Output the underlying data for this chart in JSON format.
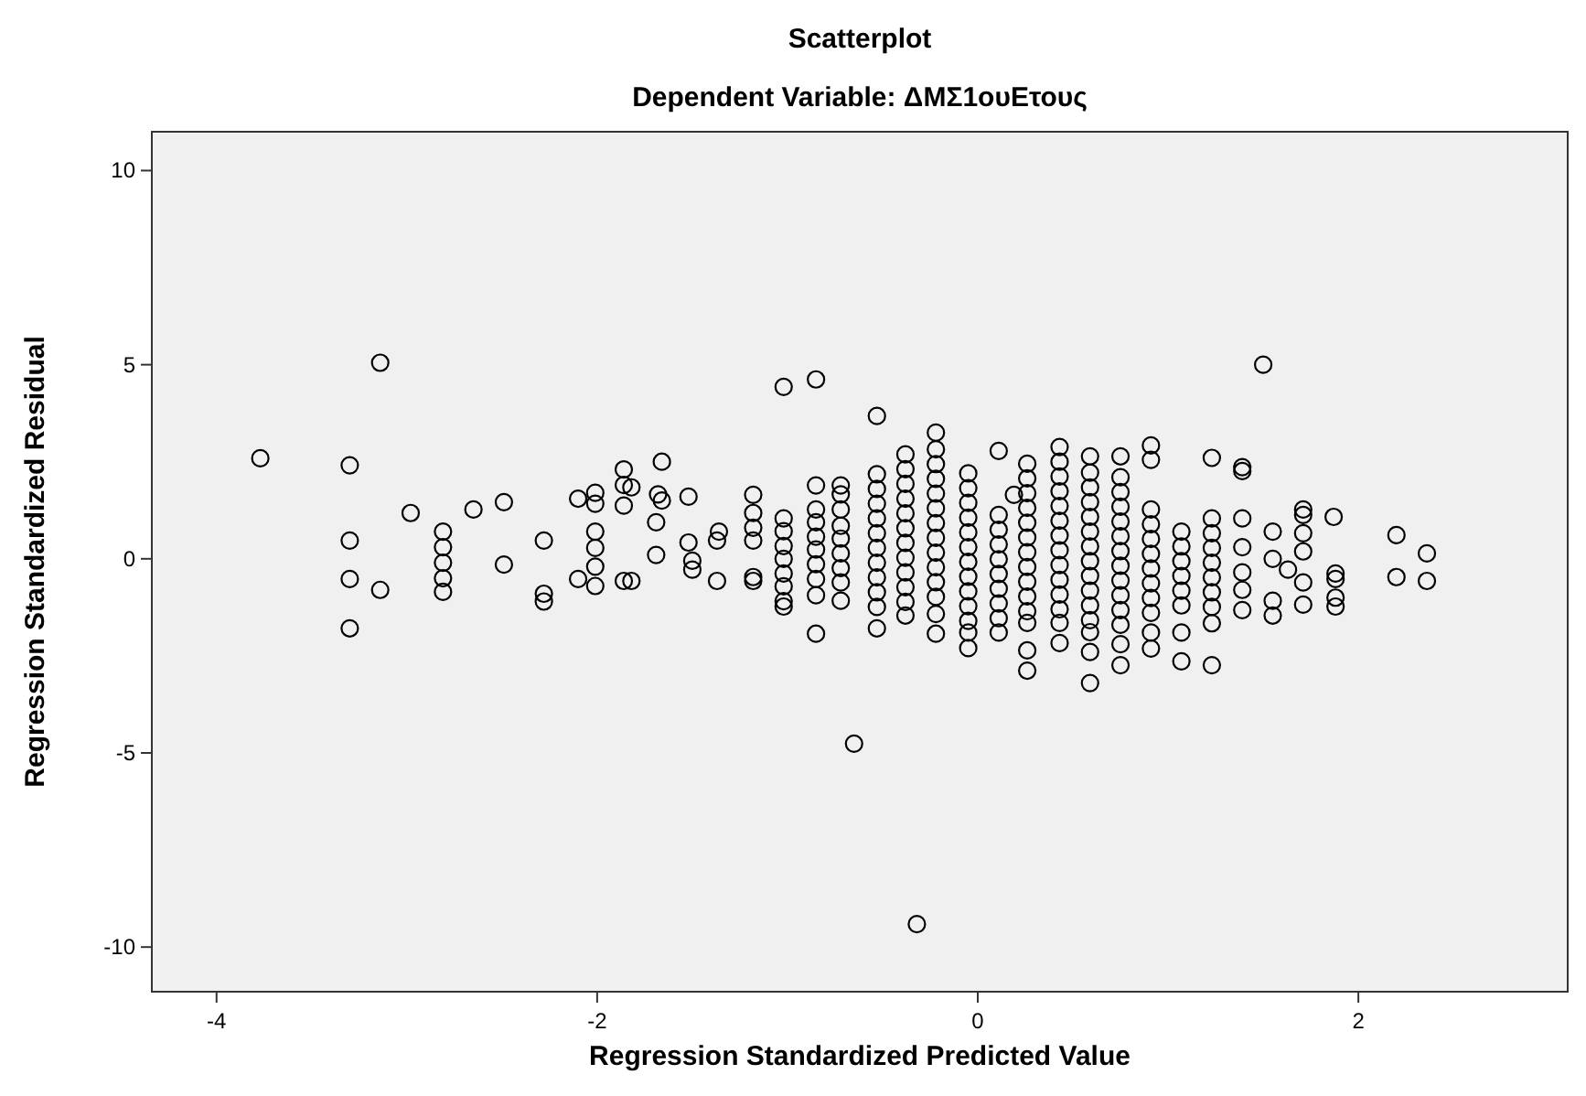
{
  "chart_data": {
    "type": "scatter",
    "title": "Scatterplot",
    "subtitle": "Dependent Variable: ΔΜΣ1ουΕτους",
    "xlabel": "Regression Standardized Predicted Value",
    "ylabel": "Regression Standardized Residual",
    "xlim": [
      -4.34,
      3.1
    ],
    "ylim": [
      -11.15,
      11.0
    ],
    "xticks": [
      -4,
      -2,
      0,
      2
    ],
    "yticks": [
      -10,
      -5,
      0,
      5,
      10
    ],
    "grid": false,
    "marker": "circle",
    "series": [
      {
        "color": "#000000",
        "x": [
          -3.77,
          -3.3,
          -3.3,
          -3.3,
          -3.3,
          -3.14,
          -3.14,
          -2.98,
          -2.81,
          -2.81,
          -2.81,
          -2.81,
          -2.81,
          -2.65,
          -2.49,
          -2.49,
          -2.28,
          -2.28,
          -2.28,
          -2.1,
          -2.1,
          -2.01,
          -2.01,
          -2.01,
          -2.01,
          -2.01,
          -2.01,
          -1.86,
          -1.86,
          -1.86,
          -1.86,
          -1.82,
          -1.82,
          -1.69,
          -1.69,
          -1.68,
          -1.66,
          -1.66,
          -1.52,
          -1.52,
          -1.5,
          -1.5,
          -1.37,
          -1.37,
          -1.36,
          -1.18,
          -1.18,
          -1.18,
          -1.18,
          -1.18,
          -1.18,
          -1.02,
          -1.02,
          -1.02,
          -1.02,
          -1.02,
          -1.02,
          -1.02,
          -1.02,
          -1.02,
          -0.85,
          -0.85,
          -0.85,
          -0.85,
          -0.85,
          -0.85,
          -0.85,
          -0.85,
          -0.85,
          -0.85,
          -0.72,
          -0.72,
          -0.72,
          -0.72,
          -0.72,
          -0.72,
          -0.72,
          -0.72,
          -0.72,
          -0.65,
          -0.53,
          -0.53,
          -0.53,
          -0.53,
          -0.53,
          -0.53,
          -0.53,
          -0.53,
          -0.53,
          -0.53,
          -0.53,
          -0.53,
          -0.38,
          -0.38,
          -0.38,
          -0.38,
          -0.38,
          -0.38,
          -0.38,
          -0.38,
          -0.38,
          -0.38,
          -0.38,
          -0.38,
          -0.32,
          -0.22,
          -0.22,
          -0.22,
          -0.22,
          -0.22,
          -0.22,
          -0.22,
          -0.22,
          -0.22,
          -0.22,
          -0.22,
          -0.22,
          -0.22,
          -0.22,
          -0.05,
          -0.05,
          -0.05,
          -0.05,
          -0.05,
          -0.05,
          -0.05,
          -0.05,
          -0.05,
          -0.05,
          -0.05,
          -0.05,
          -0.05,
          0.11,
          0.11,
          0.11,
          0.11,
          0.11,
          0.11,
          0.11,
          0.11,
          0.11,
          0.11,
          0.19,
          0.26,
          0.26,
          0.26,
          0.26,
          0.26,
          0.26,
          0.26,
          0.26,
          0.26,
          0.26,
          0.26,
          0.26,
          0.26,
          0.26,
          0.43,
          0.43,
          0.43,
          0.43,
          0.43,
          0.43,
          0.43,
          0.43,
          0.43,
          0.43,
          0.43,
          0.43,
          0.43,
          0.43,
          0.59,
          0.59,
          0.59,
          0.59,
          0.59,
          0.59,
          0.59,
          0.59,
          0.59,
          0.59,
          0.59,
          0.59,
          0.59,
          0.59,
          0.59,
          0.75,
          0.75,
          0.75,
          0.75,
          0.75,
          0.75,
          0.75,
          0.75,
          0.75,
          0.75,
          0.75,
          0.75,
          0.75,
          0.75,
          0.91,
          0.91,
          0.91,
          0.91,
          0.91,
          0.91,
          0.91,
          0.91,
          0.91,
          0.91,
          0.91,
          0.91,
          1.07,
          1.07,
          1.07,
          1.07,
          1.07,
          1.07,
          1.07,
          1.07,
          1.23,
          1.23,
          1.23,
          1.23,
          1.23,
          1.23,
          1.23,
          1.23,
          1.23,
          1.23,
          1.39,
          1.39,
          1.39,
          1.39,
          1.39,
          1.39,
          1.39,
          1.5,
          1.55,
          1.55,
          1.55,
          1.55,
          1.63,
          1.71,
          1.71,
          1.71,
          1.71,
          1.71,
          1.71,
          1.87,
          1.88,
          1.88,
          1.88,
          1.88,
          2.2,
          2.2,
          2.36,
          2.36
        ],
        "values": [
          2.59,
          2.41,
          0.47,
          -0.52,
          -1.79,
          5.05,
          -0.8,
          1.18,
          0.7,
          0.3,
          -0.1,
          -0.5,
          -0.85,
          1.27,
          1.46,
          -0.15,
          0.47,
          -0.9,
          -1.1,
          1.55,
          -0.52,
          1.7,
          1.42,
          0.7,
          0.28,
          -0.2,
          -0.7,
          2.3,
          1.9,
          1.37,
          -0.57,
          1.84,
          -0.57,
          0.94,
          0.1,
          1.66,
          2.5,
          1.5,
          1.6,
          0.42,
          -0.05,
          -0.28,
          -0.57,
          0.47,
          0.7,
          1.65,
          1.18,
          0.8,
          0.47,
          -0.47,
          -0.57,
          4.43,
          1.04,
          0.71,
          0.33,
          0,
          -0.38,
          -0.71,
          -1.09,
          -1.23,
          4.62,
          1.89,
          1.27,
          0.94,
          0.57,
          0.24,
          -0.14,
          -0.52,
          -0.94,
          -1.93,
          1.89,
          1.66,
          1.27,
          0.85,
          0.52,
          0.14,
          -0.24,
          -0.61,
          -1.08,
          -4.76,
          3.68,
          2.18,
          1.8,
          1.42,
          1.04,
          0.66,
          0.28,
          -0.1,
          -0.48,
          -0.86,
          -1.24,
          -1.79,
          2.69,
          2.31,
          1.93,
          1.55,
          1.17,
          0.79,
          0.41,
          0.03,
          -0.35,
          -0.73,
          -1.11,
          -1.46,
          -9.41,
          3.25,
          2.82,
          2.44,
          2.06,
          1.68,
          1.3,
          0.92,
          0.54,
          0.16,
          -0.22,
          -0.6,
          -0.98,
          -1.42,
          -1.93,
          2.2,
          1.82,
          1.44,
          1.06,
          0.68,
          0.3,
          -0.08,
          -0.46,
          -0.84,
          -1.22,
          -1.6,
          -1.9,
          -2.3,
          2.78,
          1.13,
          0.75,
          0.37,
          -0.01,
          -0.39,
          -0.77,
          -1.15,
          -1.53,
          -1.9,
          1.65,
          2.45,
          2.07,
          1.69,
          1.31,
          0.93,
          0.55,
          0.17,
          -0.21,
          -0.59,
          -0.97,
          -1.35,
          -1.65,
          -2.36,
          -2.88,
          2.88,
          2.5,
          2.12,
          1.74,
          1.36,
          0.98,
          0.6,
          0.22,
          -0.16,
          -0.54,
          -0.92,
          -1.3,
          -1.65,
          -2.17,
          2.64,
          2.22,
          1.84,
          1.46,
          1.08,
          0.7,
          0.32,
          -0.06,
          -0.44,
          -0.82,
          -1.2,
          -1.58,
          -1.89,
          -2.4,
          -3.2,
          2.64,
          2.1,
          1.72,
          1.34,
          0.96,
          0.58,
          0.2,
          -0.18,
          -0.56,
          -0.94,
          -1.32,
          -1.7,
          -2.2,
          -2.74,
          2.92,
          2.55,
          1.27,
          0.89,
          0.51,
          0.13,
          -0.25,
          -0.63,
          -1.01,
          -1.39,
          -1.9,
          -2.31,
          0.7,
          0.32,
          -0.06,
          -0.44,
          -0.82,
          -1.2,
          -1.9,
          -2.64,
          2.6,
          1.04,
          0.66,
          0.28,
          -0.1,
          -0.48,
          -0.86,
          -1.24,
          -1.66,
          -2.74,
          2.36,
          2.26,
          1.04,
          0.3,
          -0.35,
          -0.8,
          -1.32,
          5.0,
          0.7,
          0,
          -1.08,
          -1.46,
          -0.28,
          1.27,
          1.13,
          0.66,
          0.19,
          -0.61,
          -1.18,
          1.08,
          -0.38,
          -0.52,
          -1.0,
          -1.23,
          0.61,
          -0.47,
          0.14,
          -0.57
        ]
      }
    ]
  }
}
